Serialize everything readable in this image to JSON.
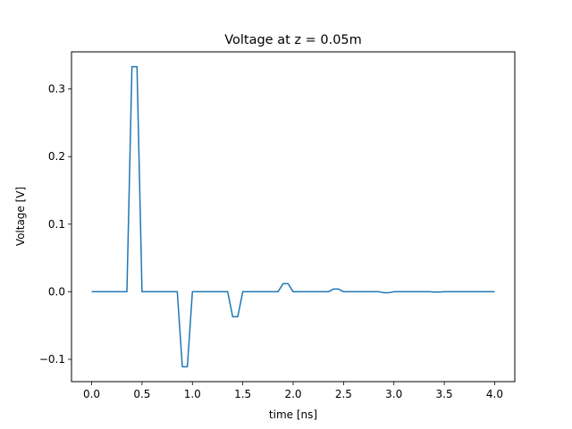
{
  "chart_data": {
    "type": "line",
    "title": "Voltage at z = 0.05m",
    "xlabel": "time [ns]",
    "ylabel": "Voltage [V]",
    "xlim": [
      -0.2,
      4.2
    ],
    "ylim": [
      -0.133,
      0.355
    ],
    "grid": false,
    "xticks": [
      0.0,
      0.5,
      1.0,
      1.5,
      2.0,
      2.5,
      3.0,
      3.5,
      4.0
    ],
    "xtick_labels": [
      "0.0",
      "0.5",
      "1.0",
      "1.5",
      "2.0",
      "2.5",
      "3.0",
      "3.5",
      "4.0"
    ],
    "yticks": [
      -0.1,
      0.0,
      0.1,
      0.2,
      0.3
    ],
    "ytick_labels": [
      "−0.1",
      "0.0",
      "0.1",
      "0.2",
      "0.3"
    ],
    "series": [
      {
        "color": "#1f77b4",
        "x": [
          0.0,
          0.35,
          0.4,
          0.45,
          0.5,
          0.85,
          0.9,
          0.95,
          1.0,
          1.35,
          1.4,
          1.45,
          1.5,
          1.85,
          1.9,
          1.95,
          2.0,
          2.35,
          2.4,
          2.45,
          2.5,
          2.85,
          2.9,
          2.95,
          3.0,
          3.35,
          3.4,
          3.45,
          3.5,
          4.0
        ],
        "y": [
          0.0,
          0.0,
          0.333,
          0.333,
          0.0,
          0.0,
          -0.111,
          -0.111,
          0.0,
          0.0,
          -0.037,
          -0.037,
          0.0,
          0.0,
          0.012,
          0.012,
          0.0,
          0.0,
          0.004,
          0.004,
          0.0,
          0.0,
          -0.0014,
          -0.0014,
          0.0,
          0.0,
          -0.0005,
          -0.0005,
          0.0,
          0.0
        ]
      }
    ]
  }
}
